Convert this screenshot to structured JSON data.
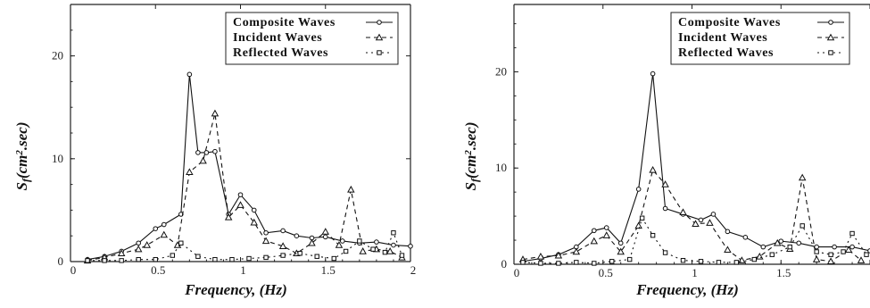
{
  "chart_data": [
    {
      "type": "line",
      "title": "",
      "xlabel": "Frequency, (Hz)",
      "ylabel_main": "S",
      "ylabel_sub": "f",
      "ylabel_paren_open": "(cm",
      "ylabel_sup": "2",
      "ylabel_rest": ".sec)",
      "xlim": [
        0,
        2
      ],
      "ylim": [
        0,
        25
      ],
      "xticks": [
        0,
        0.5,
        1,
        1.5,
        2
      ],
      "xtick_labels": [
        "0",
        "0.5",
        "1",
        "1.5",
        "2"
      ],
      "yticks": [
        0,
        10,
        20
      ],
      "ytick_labels": [
        "0",
        "10",
        "20"
      ],
      "legend_position": "top-right",
      "series": [
        {
          "name": "Composite Waves",
          "style": "solid",
          "marker": "circle",
          "color": "#111111",
          "x": [
            0.1,
            0.2,
            0.3,
            0.4,
            0.5,
            0.55,
            0.65,
            0.7,
            0.75,
            0.8,
            0.85,
            0.93,
            1.0,
            1.08,
            1.15,
            1.25,
            1.33,
            1.42,
            1.5,
            1.6,
            1.7,
            1.8,
            1.9,
            2.0
          ],
          "values": [
            0.2,
            0.5,
            1.0,
            1.8,
            3.2,
            3.6,
            4.6,
            18.2,
            10.6,
            10.6,
            10.7,
            4.6,
            6.5,
            5.0,
            2.8,
            3.0,
            2.5,
            2.3,
            2.4,
            2.0,
            1.8,
            1.9,
            1.6,
            1.5
          ]
        },
        {
          "name": "Incident Waves",
          "style": "dashed",
          "marker": "triangle",
          "color": "#111111",
          "x": [
            0.1,
            0.2,
            0.3,
            0.4,
            0.45,
            0.55,
            0.63,
            0.7,
            0.78,
            0.85,
            0.93,
            1.0,
            1.08,
            1.15,
            1.25,
            1.33,
            1.42,
            1.5,
            1.58,
            1.65,
            1.72,
            1.8,
            1.88,
            1.95
          ],
          "values": [
            0.1,
            0.4,
            0.8,
            1.2,
            1.6,
            2.6,
            1.6,
            8.7,
            9.8,
            14.4,
            4.3,
            5.5,
            3.8,
            2.0,
            1.5,
            0.8,
            1.8,
            2.9,
            1.6,
            7.0,
            1.0,
            1.2,
            1.0,
            0.4
          ]
        },
        {
          "name": "Reflected Waves",
          "style": "dotted",
          "marker": "square",
          "color": "#111111",
          "x": [
            0.1,
            0.2,
            0.3,
            0.4,
            0.5,
            0.6,
            0.65,
            0.75,
            0.85,
            0.95,
            1.05,
            1.15,
            1.25,
            1.35,
            1.45,
            1.55,
            1.62,
            1.7,
            1.78,
            1.85,
            1.9,
            1.95
          ],
          "values": [
            0.1,
            0.1,
            0.1,
            0.2,
            0.2,
            0.6,
            1.8,
            0.5,
            0.2,
            0.2,
            0.3,
            0.4,
            0.6,
            0.8,
            0.5,
            0.3,
            1.0,
            2.0,
            1.2,
            0.9,
            2.8,
            0.6
          ]
        }
      ]
    },
    {
      "type": "line",
      "title": "",
      "xlabel": "Frequency, (Hz)",
      "ylabel_main": "S",
      "ylabel_sub": "f",
      "ylabel_paren_open": "(cm",
      "ylabel_sup": "2",
      "ylabel_rest": ".sec)",
      "xlim": [
        0,
        2
      ],
      "ylim": [
        0,
        27
      ],
      "xticks": [
        0,
        0.5,
        1,
        1.5,
        2
      ],
      "xtick_labels": [
        "0",
        "0.5",
        "1",
        "1.5",
        ""
      ],
      "yticks": [
        0,
        10,
        20
      ],
      "ytick_labels": [
        "0",
        "10",
        "20"
      ],
      "legend_position": "top-right",
      "series": [
        {
          "name": "Composite Waves",
          "style": "solid",
          "marker": "circle",
          "color": "#111111",
          "x": [
            0.05,
            0.15,
            0.25,
            0.35,
            0.45,
            0.52,
            0.6,
            0.7,
            0.78,
            0.85,
            0.95,
            1.05,
            1.12,
            1.2,
            1.3,
            1.4,
            1.5,
            1.6,
            1.7,
            1.8,
            1.9,
            2.0
          ],
          "values": [
            0.3,
            0.6,
            1.0,
            1.8,
            3.5,
            3.8,
            2.2,
            7.8,
            19.8,
            5.8,
            5.2,
            4.6,
            5.2,
            3.4,
            2.8,
            1.8,
            2.4,
            2.2,
            1.8,
            1.8,
            1.8,
            1.4
          ]
        },
        {
          "name": "Incident Waves",
          "style": "dashed",
          "marker": "triangle",
          "color": "#111111",
          "x": [
            0.05,
            0.15,
            0.25,
            0.35,
            0.45,
            0.52,
            0.6,
            0.7,
            0.78,
            0.85,
            0.95,
            1.02,
            1.1,
            1.2,
            1.28,
            1.38,
            1.48,
            1.55,
            1.62,
            1.7,
            1.78,
            1.88,
            1.95
          ],
          "values": [
            0.5,
            0.8,
            0.9,
            1.3,
            2.4,
            3.0,
            1.3,
            4.0,
            9.8,
            8.3,
            5.4,
            4.2,
            4.3,
            1.5,
            0.4,
            0.8,
            2.2,
            1.6,
            9.0,
            0.5,
            0.3,
            1.5,
            0.4
          ]
        },
        {
          "name": "Reflected Waves",
          "style": "dotted",
          "marker": "square",
          "color": "#111111",
          "x": [
            0.05,
            0.15,
            0.25,
            0.35,
            0.45,
            0.55,
            0.65,
            0.72,
            0.78,
            0.85,
            0.95,
            1.05,
            1.15,
            1.25,
            1.35,
            1.45,
            1.55,
            1.62,
            1.7,
            1.78,
            1.85,
            1.9,
            1.98
          ],
          "values": [
            0.2,
            0.1,
            0.1,
            0.2,
            0.1,
            0.3,
            0.5,
            4.8,
            3.0,
            1.2,
            0.4,
            0.3,
            0.2,
            0.2,
            0.5,
            1.0,
            1.8,
            4.0,
            1.3,
            1.0,
            1.3,
            3.2,
            1.0
          ]
        }
      ]
    }
  ]
}
